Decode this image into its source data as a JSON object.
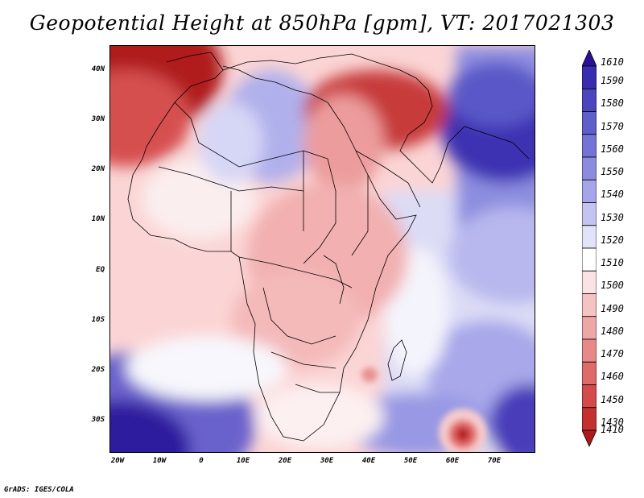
{
  "title": "Geopotential Height at 850hPa [gpm], VT: 2017021303",
  "footer": "GrADS: IGES/COLA",
  "map": {
    "lat_labels": [
      "40N",
      "30N",
      "20N",
      "10N",
      "EQ",
      "10S",
      "20S",
      "30S"
    ],
    "lon_labels": [
      "20W",
      "10W",
      "0",
      "10E",
      "20E",
      "30E",
      "40E",
      "50E",
      "60E",
      "70E"
    ]
  },
  "colorbar": {
    "levels": [
      "1610",
      "1590",
      "1580",
      "1570",
      "1560",
      "1550",
      "1540",
      "1530",
      "1520",
      "1510",
      "1500",
      "1490",
      "1480",
      "1470",
      "1460",
      "1450",
      "1430",
      "1410"
    ],
    "colors": [
      "#2a0f9a",
      "#3a2cb0",
      "#4c45c0",
      "#5e5ecc",
      "#7474d6",
      "#8b8be0",
      "#a5a5ea",
      "#c4c4f2",
      "#e2e2f8",
      "#ffffff",
      "#fbe3e3",
      "#f5c3c3",
      "#efa6a6",
      "#e88888",
      "#e06969",
      "#d54a4a",
      "#c42f2f",
      "#ae1a1a"
    ]
  }
}
